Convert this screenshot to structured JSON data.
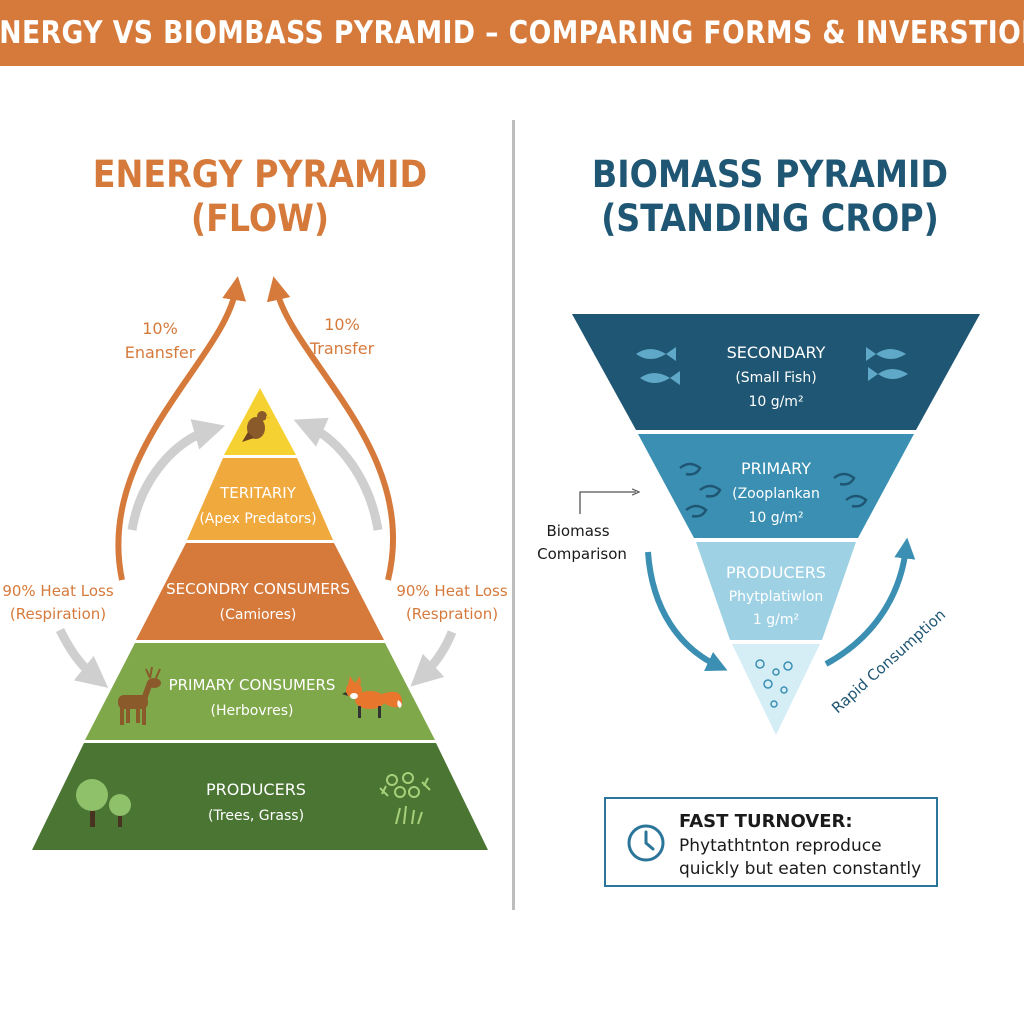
{
  "banner": {
    "title": "ENERGY VS BIOMBASS PYRAMID – COMPARING FORMS & INVERSTION"
  },
  "energy": {
    "title_line1": "ENERGY PYRAMID",
    "title_line2": "(FLOW)",
    "transfer_left": [
      "10%",
      "Enansfer"
    ],
    "transfer_right": [
      "10%",
      "Transfer"
    ],
    "heat_left": [
      "90% Heat Loss",
      "(Respiration)"
    ],
    "heat_right": [
      "90% Heat Loss",
      "(Respration)"
    ],
    "levels": [
      {
        "name": "TERITARIY",
        "sub": "(Apex Predators)"
      },
      {
        "name": "SECONDRY CONSUMERS",
        "sub": "(Camiores)"
      },
      {
        "name": "PRIMARY CONSUMERS",
        "sub": "(Herbovres)"
      },
      {
        "name": "PRODUCERS",
        "sub": "(Trees, Grass)"
      }
    ]
  },
  "biomass": {
    "title_line1": "BIOMASS PYRAMID",
    "title_line2": "(STANDING CROP)",
    "levels": [
      {
        "name": "SECONDARY",
        "sub": "(Small Fish)",
        "value": "10 g/m²"
      },
      {
        "name": "PRIMARY",
        "sub": "(Zooplankan",
        "value": "10 g/m²"
      },
      {
        "name": "PRODUCERS",
        "sub": "Phytplatiwlon",
        "value": "1 g/m²"
      }
    ],
    "comparison_label": [
      "Biomass",
      "Comparison"
    ],
    "rapid_label": "Rapid Consumption"
  },
  "callout": {
    "title": "FAST TURNOVER:",
    "body": "Phytathtnton reproduce quickly but eaten constantly"
  },
  "colors": {
    "orange": "#d67a3c",
    "yellow": "#f5d232",
    "amber": "#f0a93c",
    "green_light": "#7fa84a",
    "green_dark": "#4a7533",
    "navy": "#1f5673",
    "teal": "#3a8fb2",
    "sky": "#9fd1e4",
    "pale": "#d5eef6"
  }
}
